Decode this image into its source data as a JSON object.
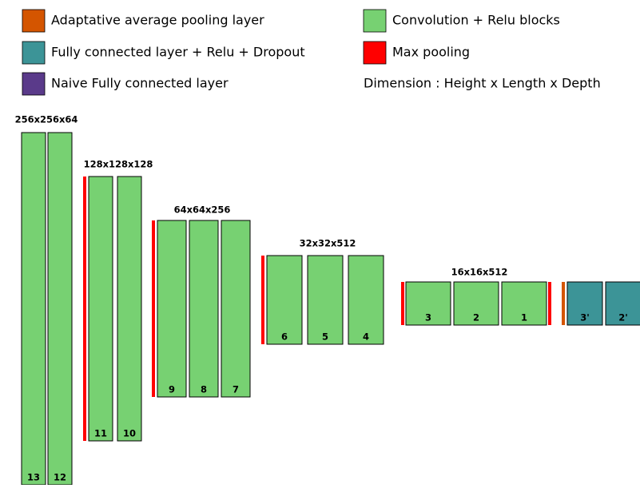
{
  "legend": [
    {
      "label": "Adaptative average pooling layer",
      "color": "#d45500"
    },
    {
      "label": "Convolution + Relu blocks",
      "color": "#77d172"
    },
    {
      "label": "Fully connected layer + Relu + Dropout",
      "color": "#3c9497"
    },
    {
      "label": "Max pooling",
      "color": "#ff0000"
    },
    {
      "label": "Naive Fully connected layer",
      "color": "#5a3a8a"
    }
  ],
  "dimension_note": "Dimension : Height x Length x Depth",
  "stages": [
    {
      "dimension": "256x256x64",
      "blocks": [
        "13",
        "12"
      ]
    },
    {
      "dimension": "128x128x128",
      "blocks": [
        "11",
        "10"
      ]
    },
    {
      "dimension": "64x64x256",
      "blocks": [
        "9",
        "8",
        "7"
      ]
    },
    {
      "dimension": "32x32x512",
      "blocks": [
        "6",
        "5",
        "4"
      ]
    },
    {
      "dimension": "16x16x512",
      "blocks": [
        "3",
        "2",
        "1"
      ]
    }
  ],
  "fc_blocks": [
    "3'",
    "2'"
  ]
}
